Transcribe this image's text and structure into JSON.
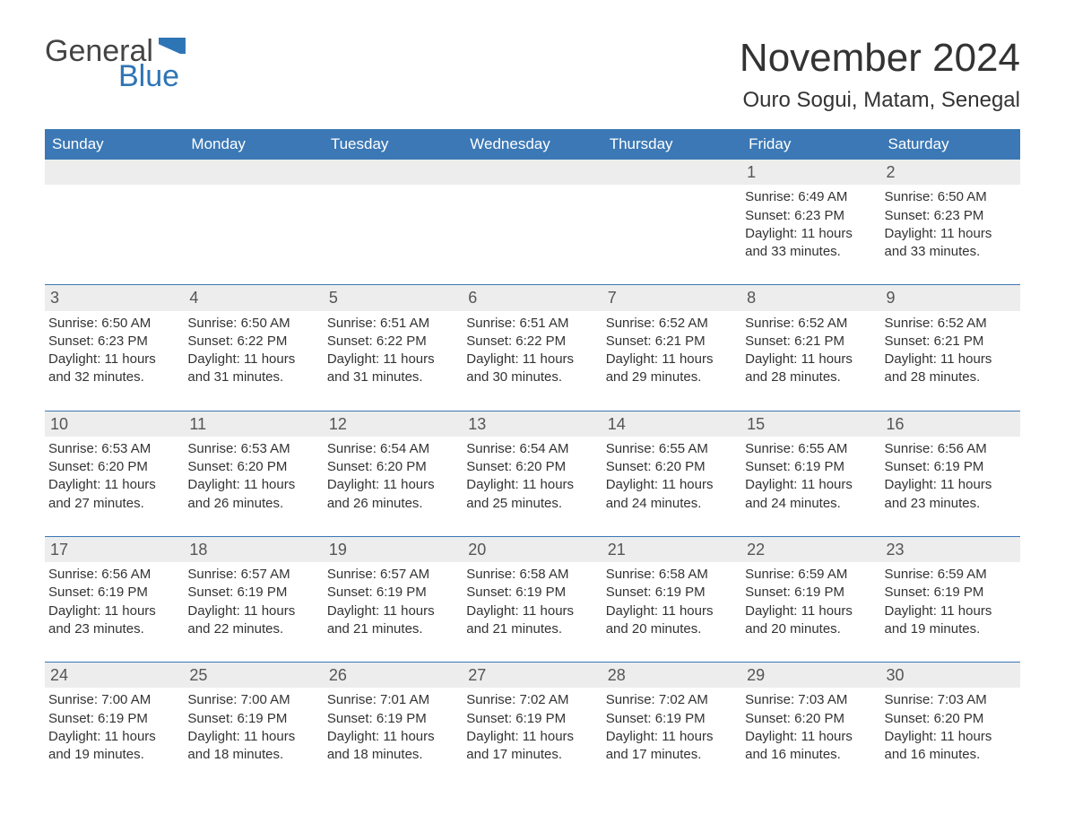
{
  "logo": {
    "part1": "General",
    "part2": "Blue"
  },
  "title": "November 2024",
  "location": "Ouro Sogui, Matam, Senegal",
  "colors": {
    "header_bg": "#3b78b5",
    "header_text": "#ffffff",
    "accent": "#2e75b6",
    "daynum_bg": "#ededed",
    "text": "#333333",
    "background": "#ffffff"
  },
  "typography": {
    "title_fontsize": 44,
    "location_fontsize": 24,
    "header_fontsize": 17,
    "body_fontsize": 15,
    "daynum_fontsize": 18
  },
  "day_headers": [
    "Sunday",
    "Monday",
    "Tuesday",
    "Wednesday",
    "Thursday",
    "Friday",
    "Saturday"
  ],
  "weeks": [
    [
      {
        "empty": true
      },
      {
        "empty": true
      },
      {
        "empty": true
      },
      {
        "empty": true
      },
      {
        "empty": true
      },
      {
        "day": "1",
        "sunrise": "Sunrise: 6:49 AM",
        "sunset": "Sunset: 6:23 PM",
        "daylight1": "Daylight: 11 hours",
        "daylight2": "and 33 minutes."
      },
      {
        "day": "2",
        "sunrise": "Sunrise: 6:50 AM",
        "sunset": "Sunset: 6:23 PM",
        "daylight1": "Daylight: 11 hours",
        "daylight2": "and 33 minutes."
      }
    ],
    [
      {
        "day": "3",
        "sunrise": "Sunrise: 6:50 AM",
        "sunset": "Sunset: 6:23 PM",
        "daylight1": "Daylight: 11 hours",
        "daylight2": "and 32 minutes."
      },
      {
        "day": "4",
        "sunrise": "Sunrise: 6:50 AM",
        "sunset": "Sunset: 6:22 PM",
        "daylight1": "Daylight: 11 hours",
        "daylight2": "and 31 minutes."
      },
      {
        "day": "5",
        "sunrise": "Sunrise: 6:51 AM",
        "sunset": "Sunset: 6:22 PM",
        "daylight1": "Daylight: 11 hours",
        "daylight2": "and 31 minutes."
      },
      {
        "day": "6",
        "sunrise": "Sunrise: 6:51 AM",
        "sunset": "Sunset: 6:22 PM",
        "daylight1": "Daylight: 11 hours",
        "daylight2": "and 30 minutes."
      },
      {
        "day": "7",
        "sunrise": "Sunrise: 6:52 AM",
        "sunset": "Sunset: 6:21 PM",
        "daylight1": "Daylight: 11 hours",
        "daylight2": "and 29 minutes."
      },
      {
        "day": "8",
        "sunrise": "Sunrise: 6:52 AM",
        "sunset": "Sunset: 6:21 PM",
        "daylight1": "Daylight: 11 hours",
        "daylight2": "and 28 minutes."
      },
      {
        "day": "9",
        "sunrise": "Sunrise: 6:52 AM",
        "sunset": "Sunset: 6:21 PM",
        "daylight1": "Daylight: 11 hours",
        "daylight2": "and 28 minutes."
      }
    ],
    [
      {
        "day": "10",
        "sunrise": "Sunrise: 6:53 AM",
        "sunset": "Sunset: 6:20 PM",
        "daylight1": "Daylight: 11 hours",
        "daylight2": "and 27 minutes."
      },
      {
        "day": "11",
        "sunrise": "Sunrise: 6:53 AM",
        "sunset": "Sunset: 6:20 PM",
        "daylight1": "Daylight: 11 hours",
        "daylight2": "and 26 minutes."
      },
      {
        "day": "12",
        "sunrise": "Sunrise: 6:54 AM",
        "sunset": "Sunset: 6:20 PM",
        "daylight1": "Daylight: 11 hours",
        "daylight2": "and 26 minutes."
      },
      {
        "day": "13",
        "sunrise": "Sunrise: 6:54 AM",
        "sunset": "Sunset: 6:20 PM",
        "daylight1": "Daylight: 11 hours",
        "daylight2": "and 25 minutes."
      },
      {
        "day": "14",
        "sunrise": "Sunrise: 6:55 AM",
        "sunset": "Sunset: 6:20 PM",
        "daylight1": "Daylight: 11 hours",
        "daylight2": "and 24 minutes."
      },
      {
        "day": "15",
        "sunrise": "Sunrise: 6:55 AM",
        "sunset": "Sunset: 6:19 PM",
        "daylight1": "Daylight: 11 hours",
        "daylight2": "and 24 minutes."
      },
      {
        "day": "16",
        "sunrise": "Sunrise: 6:56 AM",
        "sunset": "Sunset: 6:19 PM",
        "daylight1": "Daylight: 11 hours",
        "daylight2": "and 23 minutes."
      }
    ],
    [
      {
        "day": "17",
        "sunrise": "Sunrise: 6:56 AM",
        "sunset": "Sunset: 6:19 PM",
        "daylight1": "Daylight: 11 hours",
        "daylight2": "and 23 minutes."
      },
      {
        "day": "18",
        "sunrise": "Sunrise: 6:57 AM",
        "sunset": "Sunset: 6:19 PM",
        "daylight1": "Daylight: 11 hours",
        "daylight2": "and 22 minutes."
      },
      {
        "day": "19",
        "sunrise": "Sunrise: 6:57 AM",
        "sunset": "Sunset: 6:19 PM",
        "daylight1": "Daylight: 11 hours",
        "daylight2": "and 21 minutes."
      },
      {
        "day": "20",
        "sunrise": "Sunrise: 6:58 AM",
        "sunset": "Sunset: 6:19 PM",
        "daylight1": "Daylight: 11 hours",
        "daylight2": "and 21 minutes."
      },
      {
        "day": "21",
        "sunrise": "Sunrise: 6:58 AM",
        "sunset": "Sunset: 6:19 PM",
        "daylight1": "Daylight: 11 hours",
        "daylight2": "and 20 minutes."
      },
      {
        "day": "22",
        "sunrise": "Sunrise: 6:59 AM",
        "sunset": "Sunset: 6:19 PM",
        "daylight1": "Daylight: 11 hours",
        "daylight2": "and 20 minutes."
      },
      {
        "day": "23",
        "sunrise": "Sunrise: 6:59 AM",
        "sunset": "Sunset: 6:19 PM",
        "daylight1": "Daylight: 11 hours",
        "daylight2": "and 19 minutes."
      }
    ],
    [
      {
        "day": "24",
        "sunrise": "Sunrise: 7:00 AM",
        "sunset": "Sunset: 6:19 PM",
        "daylight1": "Daylight: 11 hours",
        "daylight2": "and 19 minutes."
      },
      {
        "day": "25",
        "sunrise": "Sunrise: 7:00 AM",
        "sunset": "Sunset: 6:19 PM",
        "daylight1": "Daylight: 11 hours",
        "daylight2": "and 18 minutes."
      },
      {
        "day": "26",
        "sunrise": "Sunrise: 7:01 AM",
        "sunset": "Sunset: 6:19 PM",
        "daylight1": "Daylight: 11 hours",
        "daylight2": "and 18 minutes."
      },
      {
        "day": "27",
        "sunrise": "Sunrise: 7:02 AM",
        "sunset": "Sunset: 6:19 PM",
        "daylight1": "Daylight: 11 hours",
        "daylight2": "and 17 minutes."
      },
      {
        "day": "28",
        "sunrise": "Sunrise: 7:02 AM",
        "sunset": "Sunset: 6:19 PM",
        "daylight1": "Daylight: 11 hours",
        "daylight2": "and 17 minutes."
      },
      {
        "day": "29",
        "sunrise": "Sunrise: 7:03 AM",
        "sunset": "Sunset: 6:20 PM",
        "daylight1": "Daylight: 11 hours",
        "daylight2": "and 16 minutes."
      },
      {
        "day": "30",
        "sunrise": "Sunrise: 7:03 AM",
        "sunset": "Sunset: 6:20 PM",
        "daylight1": "Daylight: 11 hours",
        "daylight2": "and 16 minutes."
      }
    ]
  ]
}
